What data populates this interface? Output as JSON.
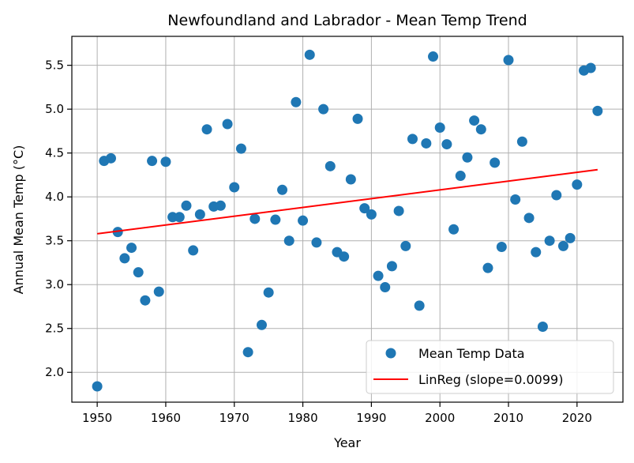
{
  "chart_data": {
    "type": "scatter",
    "title": "Newfoundland and Labrador - Mean Temp Trend",
    "xlabel": "Year",
    "ylabel": "Annual Mean Temp (°C)",
    "xlim": [
      1946.3,
      2026.7
    ],
    "ylim": [
      1.66,
      5.83
    ],
    "xticks": [
      1950,
      1960,
      1970,
      1980,
      1990,
      2000,
      2010,
      2020
    ],
    "yticks": [
      2.0,
      2.5,
      3.0,
      3.5,
      4.0,
      4.5,
      5.0,
      5.5
    ],
    "xtick_labels": [
      "1950",
      "1960",
      "1970",
      "1980",
      "1990",
      "2000",
      "2010",
      "2020"
    ],
    "ytick_labels": [
      "2.0",
      "2.5",
      "3.0",
      "3.5",
      "4.0",
      "4.5",
      "5.0",
      "5.5"
    ],
    "grid": true,
    "legend_position": "lower-right",
    "series": [
      {
        "name": "Mean Temp Data",
        "kind": "scatter",
        "color": "#1f77b4",
        "points": [
          [
            1950,
            1.84
          ],
          [
            1951,
            4.41
          ],
          [
            1952,
            4.44
          ],
          [
            1953,
            3.6
          ],
          [
            1954,
            3.3
          ],
          [
            1955,
            3.42
          ],
          [
            1956,
            3.14
          ],
          [
            1957,
            2.82
          ],
          [
            1958,
            4.41
          ],
          [
            1959,
            2.92
          ],
          [
            1960,
            4.4
          ],
          [
            1961,
            3.77
          ],
          [
            1962,
            3.77
          ],
          [
            1963,
            3.9
          ],
          [
            1964,
            3.39
          ],
          [
            1965,
            3.8
          ],
          [
            1966,
            4.77
          ],
          [
            1967,
            3.89
          ],
          [
            1968,
            3.9
          ],
          [
            1969,
            4.83
          ],
          [
            1970,
            4.11
          ],
          [
            1971,
            4.55
          ],
          [
            1972,
            2.23
          ],
          [
            1973,
            3.75
          ],
          [
            1974,
            2.54
          ],
          [
            1975,
            2.91
          ],
          [
            1976,
            3.74
          ],
          [
            1977,
            4.08
          ],
          [
            1978,
            3.5
          ],
          [
            1979,
            5.08
          ],
          [
            1980,
            3.73
          ],
          [
            1981,
            5.62
          ],
          [
            1982,
            3.48
          ],
          [
            1983,
            5.0
          ],
          [
            1984,
            4.35
          ],
          [
            1985,
            3.37
          ],
          [
            1986,
            3.32
          ],
          [
            1987,
            4.2
          ],
          [
            1988,
            4.89
          ],
          [
            1989,
            3.87
          ],
          [
            1990,
            3.8
          ],
          [
            1991,
            3.1
          ],
          [
            1992,
            2.97
          ],
          [
            1993,
            3.21
          ],
          [
            1994,
            3.84
          ],
          [
            1995,
            3.44
          ],
          [
            1996,
            4.66
          ],
          [
            1997,
            2.76
          ],
          [
            1998,
            4.61
          ],
          [
            1999,
            5.6
          ],
          [
            2000,
            4.79
          ],
          [
            2001,
            4.6
          ],
          [
            2002,
            3.63
          ],
          [
            2003,
            4.24
          ],
          [
            2004,
            4.45
          ],
          [
            2005,
            4.87
          ],
          [
            2006,
            4.77
          ],
          [
            2007,
            3.19
          ],
          [
            2008,
            4.39
          ],
          [
            2009,
            3.43
          ],
          [
            2010,
            5.56
          ],
          [
            2011,
            3.97
          ],
          [
            2012,
            4.63
          ],
          [
            2013,
            3.76
          ],
          [
            2014,
            3.37
          ],
          [
            2015,
            2.52
          ],
          [
            2016,
            3.5
          ],
          [
            2017,
            4.02
          ],
          [
            2018,
            3.44
          ],
          [
            2019,
            3.53
          ],
          [
            2020,
            4.14
          ],
          [
            2021,
            5.44
          ],
          [
            2022,
            5.47
          ],
          [
            2023,
            4.98
          ]
        ]
      },
      {
        "name": "LinReg (slope=0.0099)",
        "kind": "line",
        "color": "#ff0000",
        "points": [
          [
            1950,
            3.58
          ],
          [
            2023,
            4.31
          ]
        ]
      }
    ]
  }
}
